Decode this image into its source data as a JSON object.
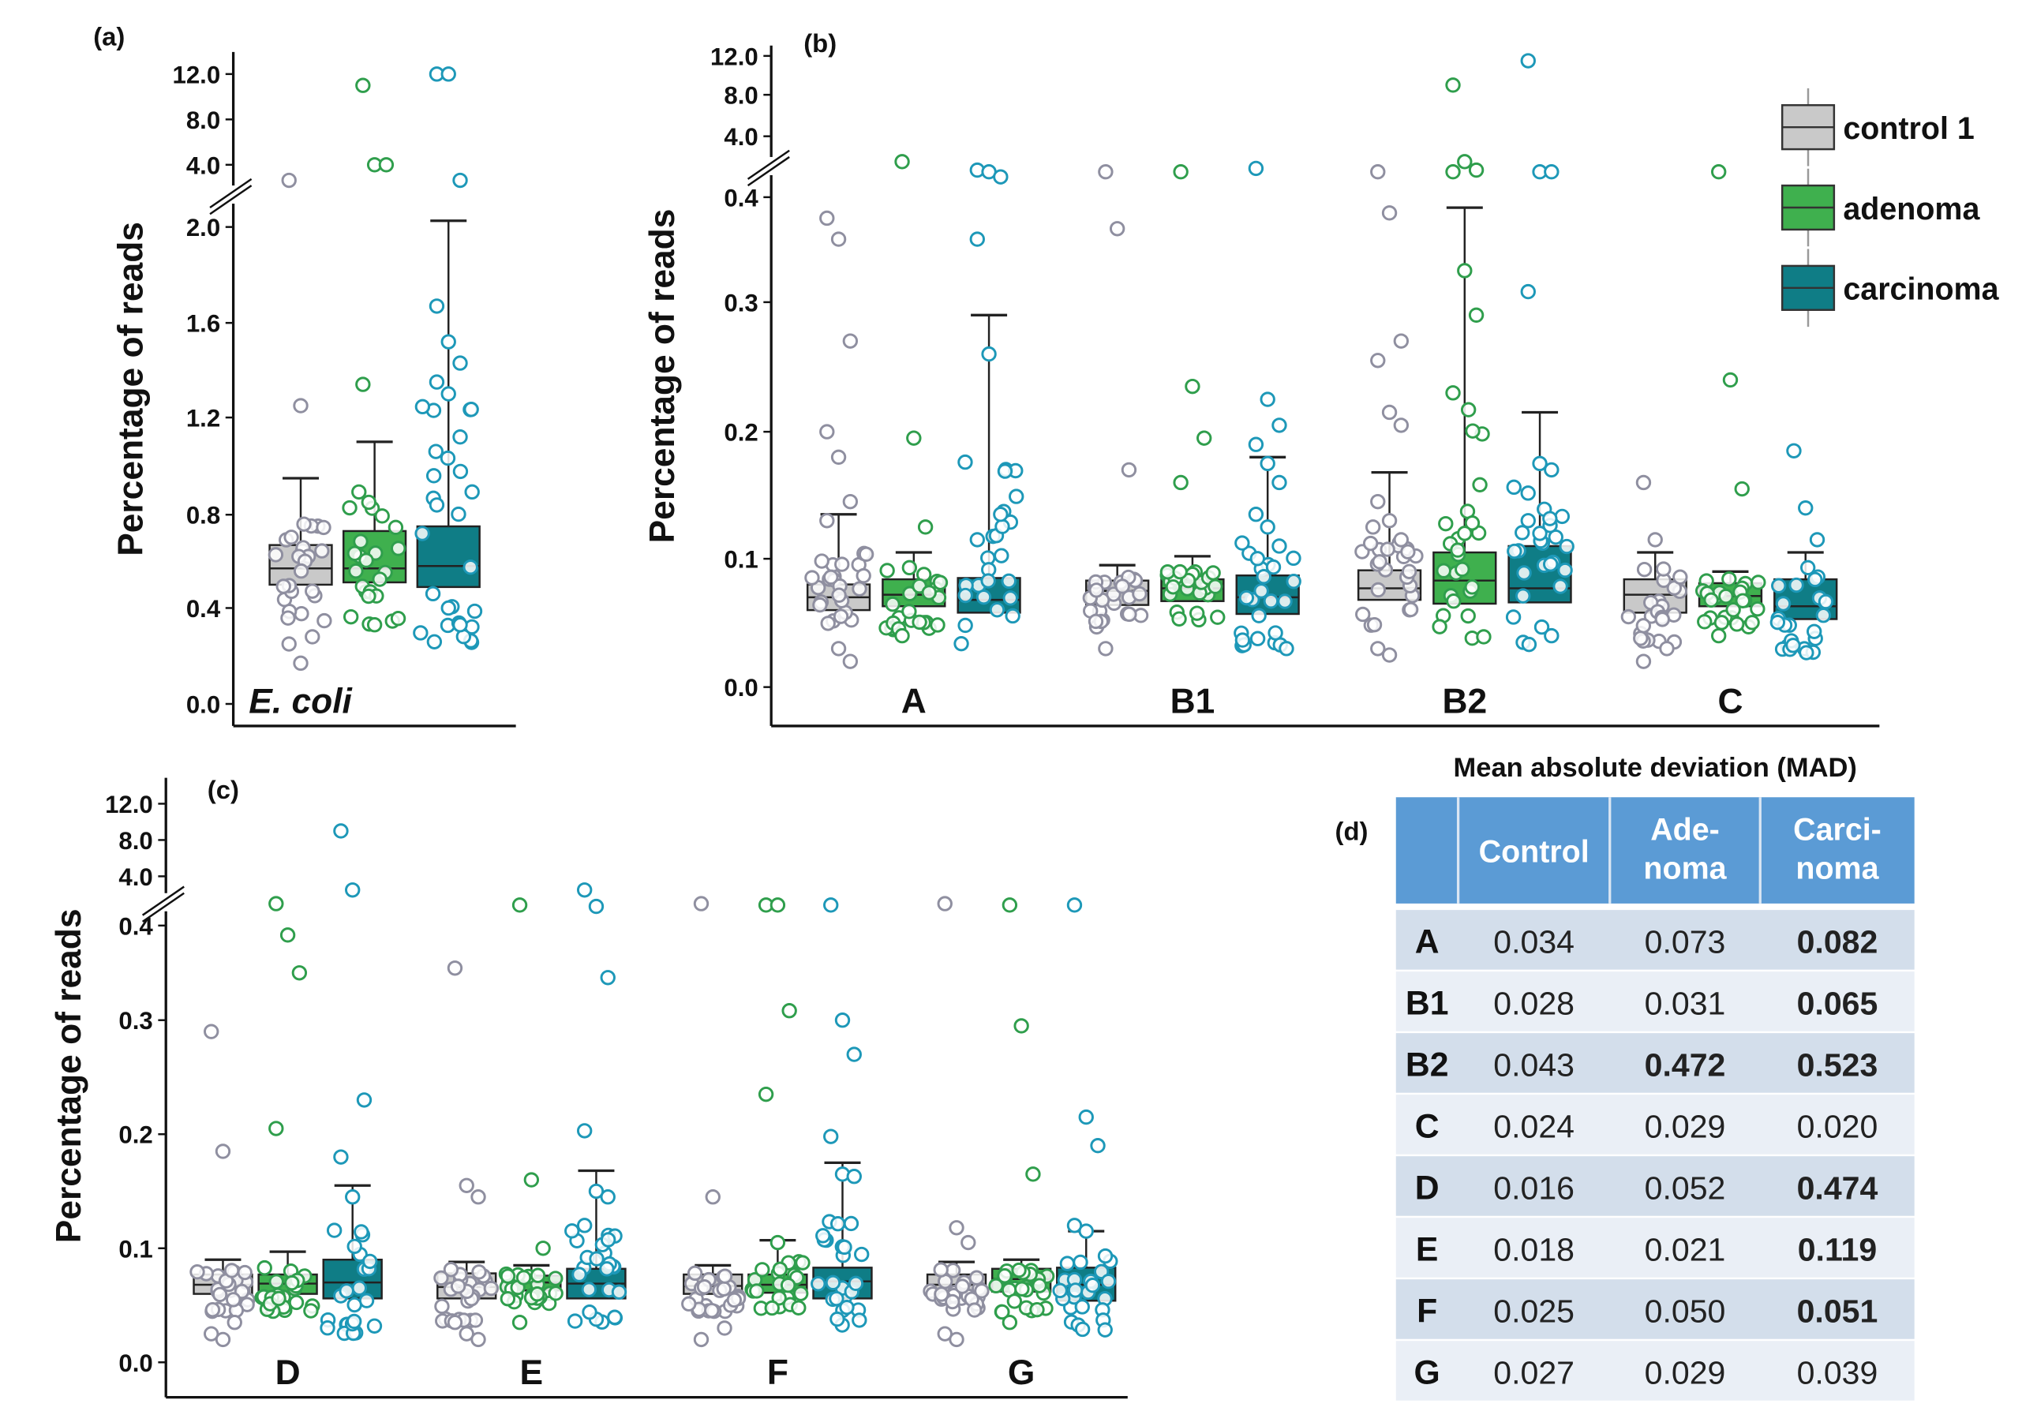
{
  "legend": [
    {
      "label": "control 1",
      "fill": "#c9c9c9",
      "point": "#8f8fa0"
    },
    {
      "label": "adenoma",
      "fill": "#3fb04e",
      "point": "#2f9e4c"
    },
    {
      "label": "carcinoma",
      "fill": "#0f7d86",
      "point": "#1d98b8"
    }
  ],
  "chart_data": [
    {
      "panel": "(a)",
      "type": "box",
      "ylabel": "Percentage of reads",
      "y_scale": "broken axis (linear lower segment, compressed upper segment)",
      "yticks": [
        "12.0",
        "8.0",
        "4.0",
        "2.0",
        "1.6",
        "1.2",
        "0.8",
        "0.4",
        "0.0"
      ],
      "groups": [
        {
          "label": "E. coli",
          "italic": true,
          "boxes": [
            {
              "series": "control 1",
              "q1": 0.5,
              "median": 0.57,
              "q3": 0.67,
              "whisker_high": 0.95,
              "outliers": [
                3.5,
                1.25,
                0.28,
                0.25,
                0.17
              ]
            },
            {
              "series": "adenoma",
              "q1": 0.51,
              "median": 0.57,
              "q3": 0.73,
              "whisker_high": 1.1,
              "outliers": [
                11.0,
                4.0,
                4.0,
                1.34,
                0.33
              ]
            },
            {
              "series": "carcinoma",
              "q1": 0.49,
              "median": 0.58,
              "q3": 0.75,
              "whisker_high": 2.2,
              "outliers": [
                12.6,
                12.0,
                3.5,
                1.67,
                1.52,
                1.43,
                1.35,
                1.3,
                1.12,
                0.84,
                0.4,
                0.33
              ]
            }
          ]
        }
      ]
    },
    {
      "panel": "(b)",
      "type": "box",
      "ylabel": "Percentage of reads",
      "yticks": [
        "12.0",
        "8.0",
        "4.0",
        "0.4",
        "0.3",
        "0.2",
        "0.1",
        "0.0"
      ],
      "groups": [
        {
          "label": "A",
          "boxes": [
            {
              "series": "control 1",
              "q1": 0.06,
              "median": 0.07,
              "q3": 0.08,
              "whisker_high": 0.135,
              "outliers": [
                0.38,
                0.36,
                0.27,
                0.2,
                0.18,
                0.145,
                0.13,
                0.03,
                0.02
              ]
            },
            {
              "series": "adenoma",
              "q1": 0.063,
              "median": 0.072,
              "q3": 0.084,
              "whisker_high": 0.105,
              "outliers": [
                2.5,
                0.195,
                0.125,
                0.04
              ]
            },
            {
              "series": "carcinoma",
              "q1": 0.058,
              "median": 0.068,
              "q3": 0.085,
              "whisker_high": 0.29,
              "outliers": [
                2.0,
                1.9,
                1.6,
                0.36,
                0.26,
                0.135,
                0.115
              ]
            }
          ]
        },
        {
          "label": "B1",
          "boxes": [
            {
              "series": "control 1",
              "q1": 0.064,
              "median": 0.075,
              "q3": 0.083,
              "whisker_high": 0.095,
              "outliers": [
                1.9,
                0.37,
                0.17,
                0.03
              ]
            },
            {
              "series": "adenoma",
              "q1": 0.067,
              "median": 0.077,
              "q3": 0.084,
              "whisker_high": 0.102,
              "outliers": [
                1.9,
                0.235,
                0.195,
                0.16
              ]
            },
            {
              "series": "carcinoma",
              "q1": 0.057,
              "median": 0.07,
              "q3": 0.087,
              "whisker_high": 0.18,
              "outliers": [
                2.1,
                0.225,
                0.205,
                0.19,
                0.175,
                0.16,
                0.135,
                0.125,
                0.11
              ]
            }
          ]
        },
        {
          "label": "B2",
          "boxes": [
            {
              "series": "control 1",
              "q1": 0.068,
              "median": 0.077,
              "q3": 0.091,
              "whisker_high": 0.168,
              "outliers": [
                1.9,
                0.385,
                0.27,
                0.255,
                0.215,
                0.205,
                0.145,
                0.13,
                0.115,
                0.03,
                0.025
              ]
            },
            {
              "series": "adenoma",
              "q1": 0.065,
              "median": 0.083,
              "q3": 0.105,
              "whisker_high": 0.39,
              "outliers": [
                9.0,
                2.5,
                2.0,
                1.9,
                0.33,
                0.29,
                0.23,
                0.12
              ]
            },
            {
              "series": "carcinoma",
              "q1": 0.066,
              "median": 0.077,
              "q3": 0.11,
              "whisker_high": 0.215,
              "outliers": [
                11.5,
                1.9,
                1.9,
                0.31,
                0.175,
                0.17,
                0.13,
                0.12,
                0.04
              ]
            }
          ]
        },
        {
          "label": "C",
          "boxes": [
            {
              "series": "control 1",
              "q1": 0.058,
              "median": 0.072,
              "q3": 0.084,
              "whisker_high": 0.105,
              "outliers": [
                0.16,
                0.115,
                0.03,
                0.02
              ]
            },
            {
              "series": "adenoma",
              "q1": 0.063,
              "median": 0.071,
              "q3": 0.081,
              "whisker_high": 0.09,
              "outliers": [
                1.9,
                0.24,
                0.155,
                0.04
              ]
            },
            {
              "series": "carcinoma",
              "q1": 0.053,
              "median": 0.063,
              "q3": 0.084,
              "whisker_high": 0.105,
              "outliers": [
                0.185,
                0.14,
                0.115
              ]
            }
          ]
        }
      ]
    },
    {
      "panel": "(c)",
      "type": "box",
      "ylabel": "Percentage of reads",
      "yticks": [
        "12.0",
        "8.0",
        "4.0",
        "0.4",
        "0.3",
        "0.2",
        "0.1",
        "0.0"
      ],
      "groups": [
        {
          "label": "D",
          "boxes": [
            {
              "series": "control 1",
              "q1": 0.06,
              "median": 0.068,
              "q3": 0.077,
              "whisker_high": 0.09,
              "outliers": [
                0.29,
                0.185,
                0.035,
                0.025,
                0.02
              ]
            },
            {
              "series": "adenoma",
              "q1": 0.06,
              "median": 0.069,
              "q3": 0.077,
              "whisker_high": 0.097,
              "outliers": [
                2.0,
                0.39,
                0.35,
                0.205
              ]
            },
            {
              "series": "carcinoma",
              "q1": 0.056,
              "median": 0.07,
              "q3": 0.09,
              "whisker_high": 0.155,
              "outliers": [
                9.0,
                3.0,
                0.23,
                0.18,
                0.145
              ]
            }
          ]
        },
        {
          "label": "E",
          "boxes": [
            {
              "series": "control 1",
              "q1": 0.056,
              "median": 0.066,
              "q3": 0.078,
              "whisker_high": 0.088,
              "outliers": [
                0.355,
                0.155,
                0.145,
                0.035,
                0.025,
                0.02
              ]
            },
            {
              "series": "adenoma",
              "q1": 0.063,
              "median": 0.07,
              "q3": 0.076,
              "whisker_high": 0.085,
              "outliers": [
                1.9,
                0.16,
                0.1,
                0.035
              ]
            },
            {
              "series": "carcinoma",
              "q1": 0.056,
              "median": 0.069,
              "q3": 0.082,
              "whisker_high": 0.168,
              "outliers": [
                3.0,
                1.8,
                0.345,
                0.203,
                0.15,
                0.145,
                0.12
              ]
            }
          ]
        },
        {
          "label": "F",
          "boxes": [
            {
              "series": "control 1",
              "q1": 0.06,
              "median": 0.067,
              "q3": 0.077,
              "whisker_high": 0.085,
              "outliers": [
                2.0,
                0.145,
                0.03,
                0.02
              ]
            },
            {
              "series": "adenoma",
              "q1": 0.061,
              "median": 0.068,
              "q3": 0.077,
              "whisker_high": 0.107,
              "outliers": [
                1.9,
                1.9,
                0.31,
                0.235,
                0.105
              ]
            },
            {
              "series": "carcinoma",
              "q1": 0.056,
              "median": 0.071,
              "q3": 0.083,
              "whisker_high": 0.175,
              "outliers": [
                1.9,
                0.3,
                0.27,
                0.198,
                0.165,
                0.163
              ]
            }
          ]
        },
        {
          "label": "G",
          "boxes": [
            {
              "series": "control 1",
              "q1": 0.06,
              "median": 0.068,
              "q3": 0.077,
              "whisker_high": 0.088,
              "outliers": [
                2.0,
                0.118,
                0.105,
                0.025,
                0.02
              ]
            },
            {
              "series": "adenoma",
              "q1": 0.062,
              "median": 0.073,
              "q3": 0.082,
              "whisker_high": 0.09,
              "outliers": [
                1.9,
                0.295,
                0.165,
                0.035
              ]
            },
            {
              "series": "carcinoma",
              "q1": 0.054,
              "median": 0.068,
              "q3": 0.083,
              "whisker_high": 0.115,
              "outliers": [
                1.9,
                0.215,
                0.19,
                0.12,
                0.115
              ]
            }
          ]
        }
      ]
    },
    {
      "panel": "(d)",
      "type": "table",
      "title": "Mean absolute deviation (MAD)",
      "header_color": "#5b9bd5",
      "highlight_color": "#c8102e",
      "columns": [
        [
          "Control"
        ],
        [
          "Ade-",
          "noma"
        ],
        [
          "Carci-",
          "noma"
        ]
      ],
      "rows": [
        {
          "label": "A",
          "cells": [
            {
              "v": "0.034",
              "s": "normal"
            },
            {
              "v": "0.073",
              "s": "normal"
            },
            {
              "v": "0.082",
              "s": "bold"
            }
          ]
        },
        {
          "label": "B1",
          "cells": [
            {
              "v": "0.028",
              "s": "normal"
            },
            {
              "v": "0.031",
              "s": "normal"
            },
            {
              "v": "0.065",
              "s": "bold"
            }
          ]
        },
        {
          "label": "B2",
          "cells": [
            {
              "v": "0.043",
              "s": "normal"
            },
            {
              "v": "0.472",
              "s": "red"
            },
            {
              "v": "0.523",
              "s": "red"
            }
          ]
        },
        {
          "label": "C",
          "cells": [
            {
              "v": "0.024",
              "s": "normal"
            },
            {
              "v": "0.029",
              "s": "normal"
            },
            {
              "v": "0.020",
              "s": "normal"
            }
          ]
        },
        {
          "label": "D",
          "cells": [
            {
              "v": "0.016",
              "s": "normal"
            },
            {
              "v": "0.052",
              "s": "normal"
            },
            {
              "v": "0.474",
              "s": "red"
            }
          ]
        },
        {
          "label": "E",
          "cells": [
            {
              "v": "0.018",
              "s": "normal"
            },
            {
              "v": "0.021",
              "s": "normal"
            },
            {
              "v": "0.119",
              "s": "bold"
            }
          ]
        },
        {
          "label": "F",
          "cells": [
            {
              "v": "0.025",
              "s": "normal"
            },
            {
              "v": "0.050",
              "s": "normal"
            },
            {
              "v": "0.051",
              "s": "bold"
            }
          ]
        },
        {
          "label": "G",
          "cells": [
            {
              "v": "0.027",
              "s": "normal"
            },
            {
              "v": "0.029",
              "s": "normal"
            },
            {
              "v": "0.039",
              "s": "normal"
            }
          ]
        }
      ]
    }
  ]
}
